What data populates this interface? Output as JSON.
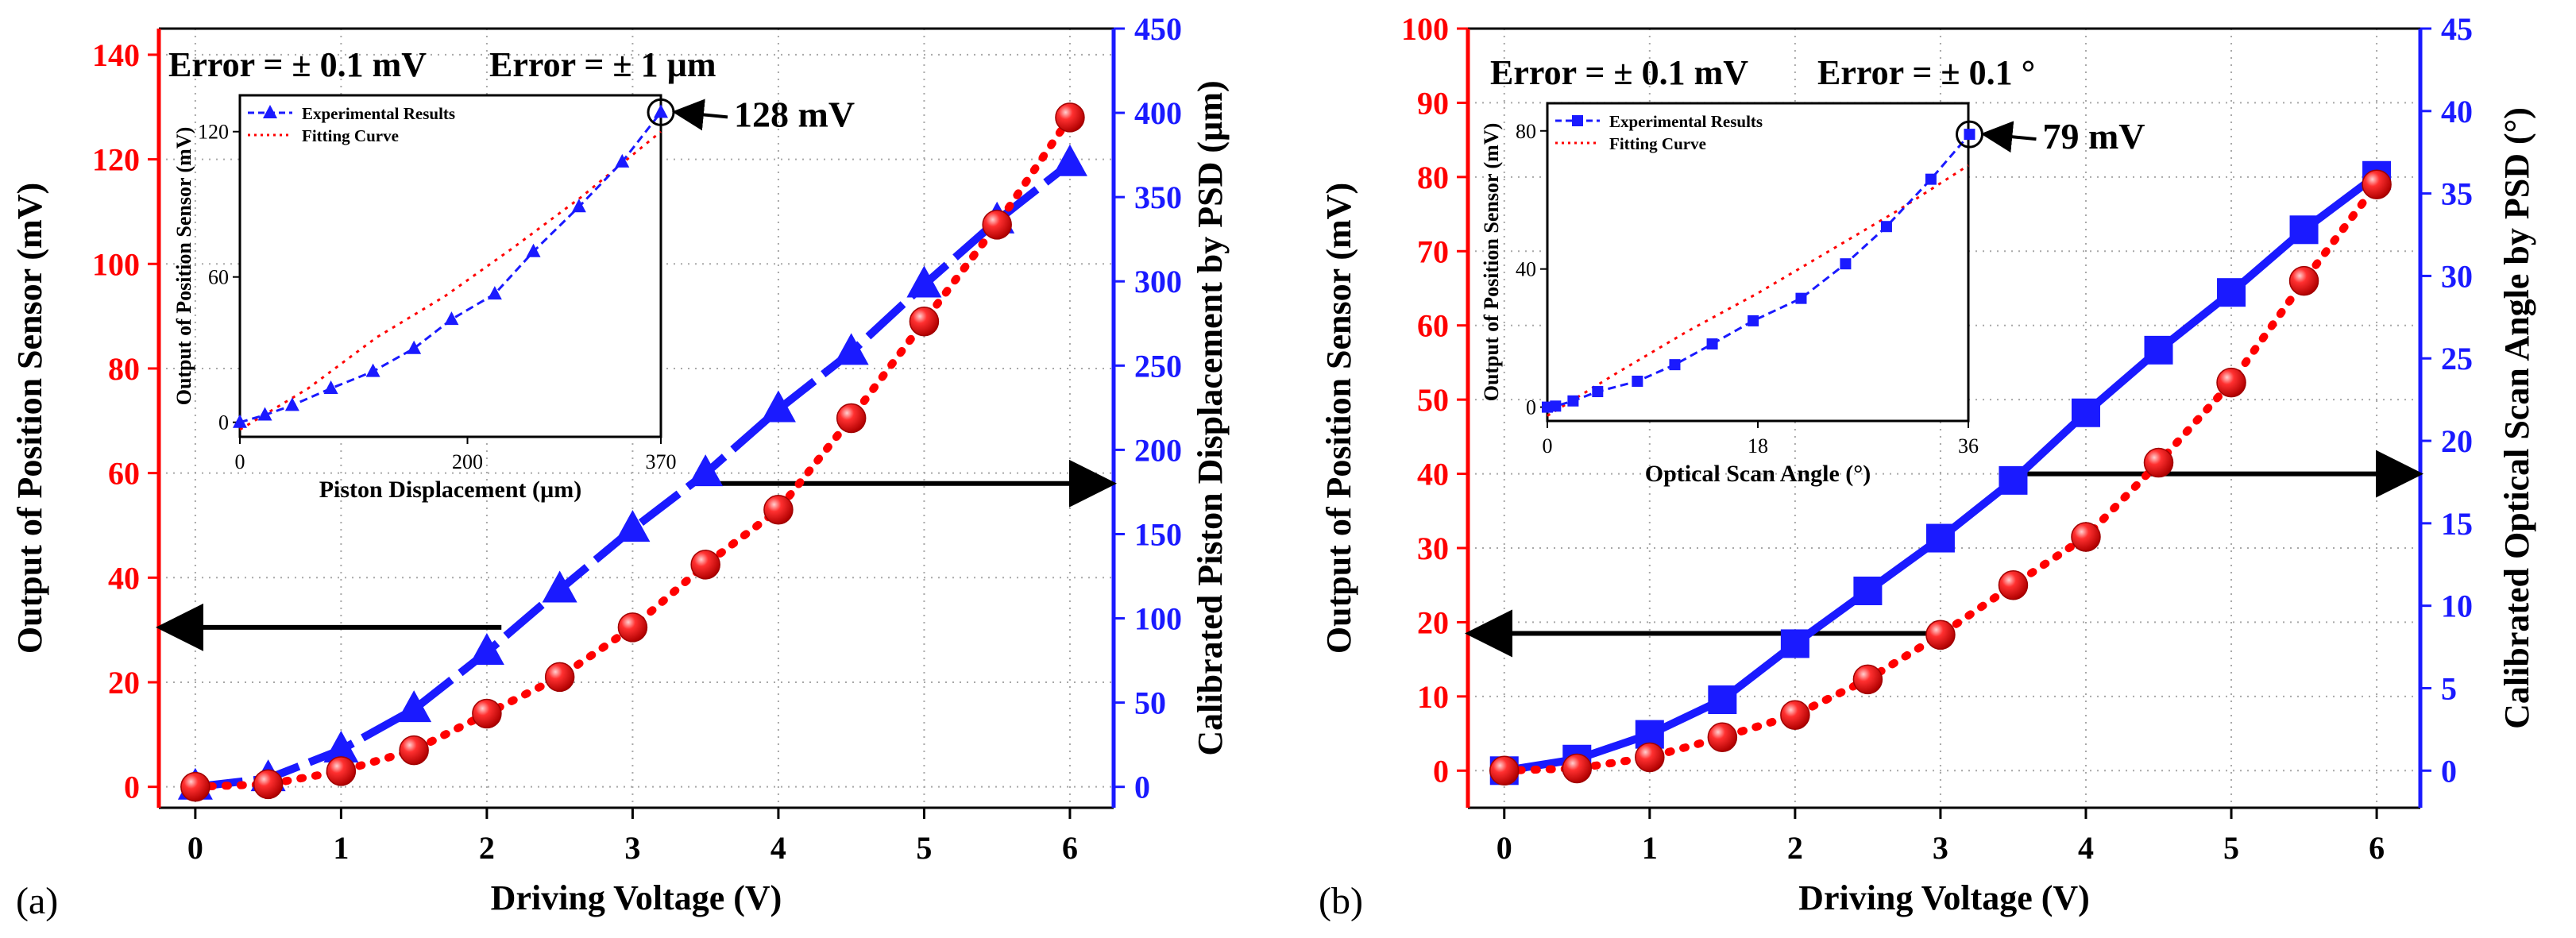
{
  "colors": {
    "red": "#ff0000",
    "blue": "#1a1aff",
    "black": "#000000",
    "grid": "#a8a8a8"
  },
  "chart_data": [
    {
      "type": "line",
      "panel_label": "(a)",
      "error_text_1": "Error = ± 0.1 mV",
      "error_text_2": "Error = ± 1 µm",
      "xlabel": "Driving Voltage (V)",
      "ylabel_left": "Output of Position Sensor (mV)",
      "ylabel_right": "Calibrated Piston Displacement by PSD (µm)",
      "xlim": [
        -0.25,
        6.3
      ],
      "ylim_left": [
        -4,
        145
      ],
      "ylim_right": [
        -12.4,
        450
      ],
      "x_ticks": [
        0,
        1,
        2,
        3,
        4,
        5,
        6
      ],
      "y_left_ticks": [
        0,
        20,
        40,
        60,
        80,
        100,
        120,
        140
      ],
      "y_right_ticks": [
        0,
        50,
        100,
        150,
        200,
        250,
        300,
        350,
        400,
        450
      ],
      "x": [
        0,
        0.5,
        1,
        1.5,
        2,
        2.5,
        3,
        3.5,
        4,
        4.5,
        5,
        5.5,
        6
      ],
      "series": [
        {
          "name": "Output of Position Sensor",
          "axis": "left",
          "marker": "sphere",
          "values": [
            0,
            0.5,
            3,
            7,
            14,
            21,
            30.5,
            42.5,
            53,
            70.5,
            89,
            107.5,
            128
          ]
        },
        {
          "name": "Calibrated Piston Displacement",
          "axis": "right",
          "marker": "triangle",
          "values": [
            0,
            5,
            22,
            46,
            80,
            117,
            153,
            186,
            224,
            258,
            298,
            336,
            370
          ]
        }
      ],
      "arrow_left_at": 30.5,
      "arrow_right_at": 58,
      "callout": "128 mV",
      "inset": {
        "xlabel": "Piston Displacement (µm)",
        "ylabel": "Output of Position Sensor (mV)",
        "legend": [
          "Experimental Results",
          "Fitting Curve"
        ],
        "x_ticks": [
          0,
          200,
          370
        ],
        "y_ticks": [
          0,
          60,
          120
        ],
        "xlim": [
          0,
          370
        ],
        "ylim": [
          -6,
          135
        ],
        "x": [
          0,
          22,
          46,
          80,
          117,
          153,
          186,
          224,
          258,
          298,
          336,
          370
        ],
        "y": [
          0,
          3,
          7,
          14,
          21,
          30.5,
          42.5,
          53,
          70.5,
          89,
          107.5,
          128
        ],
        "fit_x": [
          0,
          60,
          120,
          180,
          240,
          300,
          370
        ],
        "fit_y": [
          -3,
          14,
          35,
          52,
          72,
          93,
          120
        ]
      }
    },
    {
      "type": "line",
      "panel_label": "(b)",
      "error_text_1": "Error = ± 0.1 mV",
      "error_text_2": "Error = ± 0.1 °",
      "xlabel": "Driving Voltage (V)",
      "ylabel_left": "Output of Position Sensor (mV)",
      "ylabel_right": "Calibrated Optical Scan Angle by PSD (°)",
      "xlim": [
        -0.25,
        6.3
      ],
      "ylim_left": [
        -5,
        100
      ],
      "ylim_right": [
        -2.25,
        45
      ],
      "x_ticks": [
        0,
        1,
        2,
        3,
        4,
        5,
        6
      ],
      "y_left_ticks": [
        0,
        10,
        20,
        30,
        40,
        50,
        60,
        70,
        80,
        90,
        100
      ],
      "y_right_ticks": [
        0,
        5,
        10,
        15,
        20,
        25,
        30,
        35,
        40,
        45
      ],
      "x": [
        0,
        0.5,
        1,
        1.5,
        2,
        2.5,
        3,
        3.5,
        4,
        4.5,
        5,
        5.5,
        6
      ],
      "series": [
        {
          "name": "Output of Position Sensor",
          "axis": "left",
          "marker": "sphere",
          "values": [
            0,
            0.3,
            1.8,
            4.5,
            7.5,
            12.3,
            18.3,
            25,
            31.5,
            41.5,
            52.3,
            66,
            79
          ]
        },
        {
          "name": "Calibrated Optical Scan Angle",
          "axis": "right",
          "marker": "square",
          "values": [
            0,
            0.7,
            2.2,
            4.3,
            7.7,
            10.9,
            14.1,
            17.6,
            21.7,
            25.5,
            29,
            32.8,
            36.1
          ]
        }
      ],
      "arrow_left_at": 18.5,
      "arrow_right_at": 40,
      "callout": "79 mV",
      "inset": {
        "xlabel": "Optical Scan Angle (°)",
        "ylabel": "Output of Position Sensor (mV)",
        "legend": [
          "Experimental Results",
          "Fitting Curve"
        ],
        "x_ticks": [
          0,
          18,
          36
        ],
        "y_ticks": [
          0,
          40,
          80
        ],
        "xlim": [
          0,
          36
        ],
        "ylim": [
          -4,
          88
        ],
        "x": [
          0,
          0.7,
          2.2,
          4.3,
          7.7,
          10.9,
          14.1,
          17.6,
          21.7,
          25.5,
          29,
          32.8,
          36.1
        ],
        "y": [
          0,
          0.3,
          1.8,
          4.5,
          7.5,
          12.3,
          18.3,
          25,
          31.5,
          41.5,
          52.3,
          66,
          79
        ],
        "fit_x": [
          0,
          6,
          12,
          18,
          24,
          30,
          36
        ],
        "fit_y": [
          -2.5,
          10,
          22,
          33,
          45,
          57,
          70
        ]
      }
    }
  ]
}
